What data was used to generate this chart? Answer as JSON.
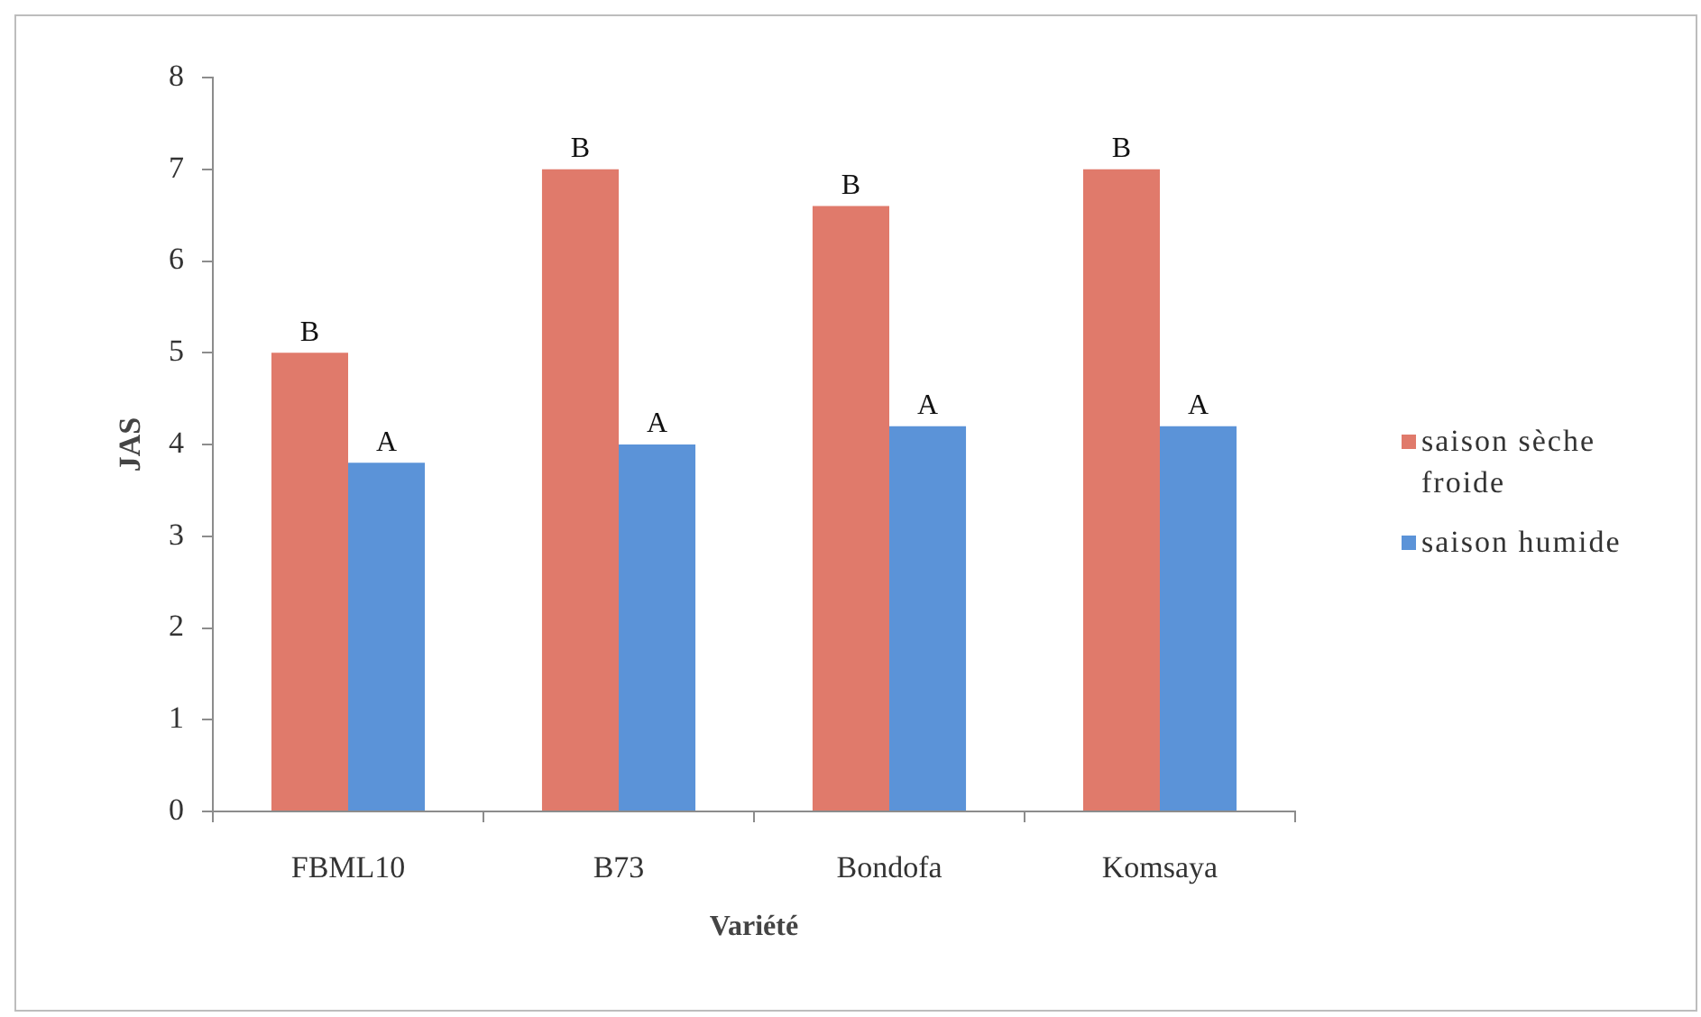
{
  "chart_data": {
    "type": "bar",
    "xlabel": "Variété",
    "ylabel": "JAS",
    "categories": [
      "FBML10",
      "B73",
      "Bondofa",
      "Komsaya"
    ],
    "series": [
      {
        "name": "saison sèche froide",
        "color": "#e07a6b",
        "values": [
          5,
          7,
          6.6,
          7
        ]
      },
      {
        "name": "saison humide",
        "color": "#5b93d8",
        "values": [
          3.8,
          4,
          4.2,
          4.2
        ]
      }
    ],
    "ylim": [
      0,
      8
    ],
    "yticks": [
      0,
      1,
      2,
      3,
      4,
      5,
      6,
      7,
      8
    ],
    "legend": "right",
    "annotations": [
      {
        "text": "B",
        "x": "FBML10",
        "y": 5
      },
      {
        "text": "A",
        "x": "FBML10",
        "y": 3.8
      },
      {
        "text": "B",
        "x": "B73",
        "y": 7
      },
      {
        "text": "A",
        "x": "B73",
        "y": 4
      },
      {
        "text": "B",
        "x": "Bondofa",
        "y": 6.6
      },
      {
        "text": "A",
        "x": "Bondofa",
        "y": 4.2
      },
      {
        "text": "B",
        "x": "Komsaya",
        "y": 7
      },
      {
        "text": "A",
        "x": "Komsaya",
        "y": 4.2
      }
    ]
  }
}
